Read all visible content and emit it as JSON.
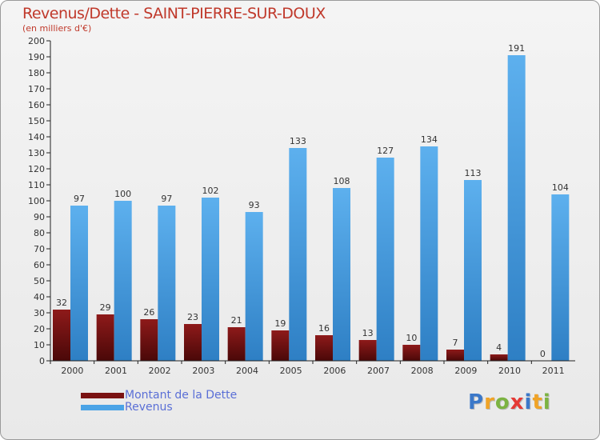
{
  "chart_data": {
    "type": "bar",
    "title": "Revenus/Dette - SAINT-PIERRE-SUR-DOUX",
    "subtitle": "(en milliers d'€)",
    "categories": [
      "2000",
      "2001",
      "2002",
      "2003",
      "2004",
      "2005",
      "2006",
      "2007",
      "2008",
      "2009",
      "2010",
      "2011"
    ],
    "series": [
      {
        "name": "Montant de la Dette",
        "values": [
          32,
          29,
          26,
          23,
          21,
          19,
          16,
          13,
          10,
          7,
          4,
          0
        ],
        "color": "#7a1212"
      },
      {
        "name": "Revenus",
        "values": [
          97,
          100,
          97,
          102,
          93,
          133,
          108,
          127,
          134,
          113,
          191,
          104
        ],
        "color": "#4aa3e6"
      }
    ],
    "ylim": [
      0,
      200
    ],
    "yticks": [
      0,
      10,
      20,
      30,
      40,
      50,
      60,
      70,
      80,
      90,
      100,
      110,
      120,
      130,
      140,
      150,
      160,
      170,
      180,
      190,
      200
    ],
    "grid": false,
    "legend": "bottom-left"
  },
  "brand": {
    "text": "Proxiti",
    "letter_colors": [
      "#3b78c9",
      "#f0a326",
      "#7cb342",
      "#e53935",
      "#3b78c9",
      "#f0a326",
      "#7cb342"
    ]
  }
}
